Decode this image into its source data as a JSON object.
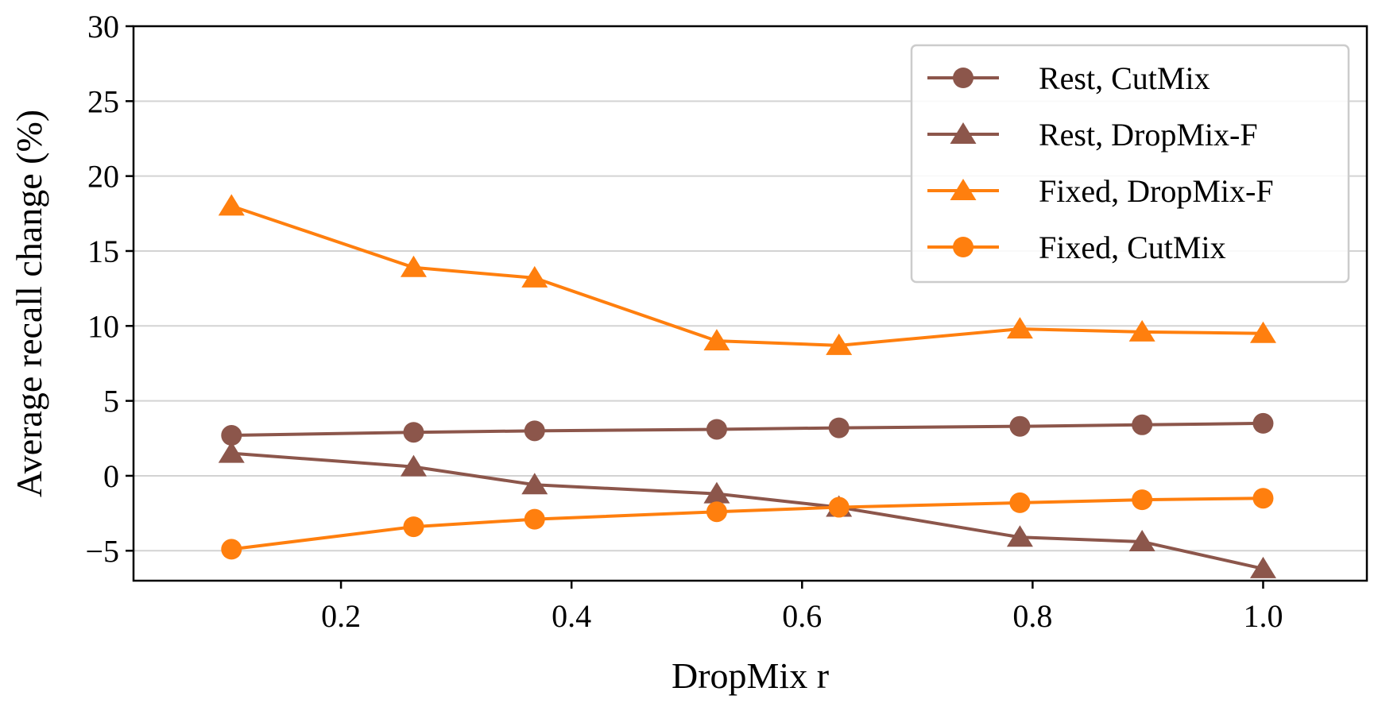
{
  "chart_data": {
    "type": "line",
    "xlabel": "DropMix r",
    "ylabel": "Average recall change (%)",
    "xlim": [
      0.02,
      1.09
    ],
    "ylim": [
      -7,
      30
    ],
    "x_ticks": [
      0.2,
      0.4,
      0.6,
      0.8,
      1.0
    ],
    "x_tick_labels": [
      "0.2",
      "0.4",
      "0.6",
      "0.8",
      "1.0"
    ],
    "y_ticks": [
      -5,
      0,
      5,
      10,
      15,
      20,
      25,
      30
    ],
    "y_tick_labels": [
      "−5",
      "0",
      "5",
      "10",
      "15",
      "20",
      "25",
      "30"
    ],
    "grid": "horizontal",
    "legend_position": "top-right",
    "x": [
      0.105,
      0.263,
      0.368,
      0.526,
      0.632,
      0.789,
      0.895,
      1.0
    ],
    "series": [
      {
        "name": "Rest, CutMix",
        "marker": "circle",
        "color": "#8c564b",
        "values": [
          2.7,
          2.9,
          3.0,
          3.1,
          3.2,
          3.3,
          3.4,
          3.5
        ]
      },
      {
        "name": "Rest, DropMix-F",
        "marker": "triangle",
        "color": "#8c564b",
        "values": [
          1.5,
          0.6,
          -0.6,
          -1.2,
          -2.1,
          -4.1,
          -4.4,
          -6.2
        ]
      },
      {
        "name": "Fixed, DropMix-F",
        "marker": "triangle",
        "color": "#ff7f0e",
        "values": [
          18.0,
          13.9,
          13.2,
          9.0,
          8.7,
          9.8,
          9.6,
          9.5
        ]
      },
      {
        "name": "Fixed, CutMix",
        "marker": "circle",
        "color": "#ff7f0e",
        "values": [
          -4.9,
          -3.4,
          -2.9,
          -2.4,
          -2.1,
          -1.8,
          -1.6,
          -1.5
        ]
      }
    ]
  }
}
